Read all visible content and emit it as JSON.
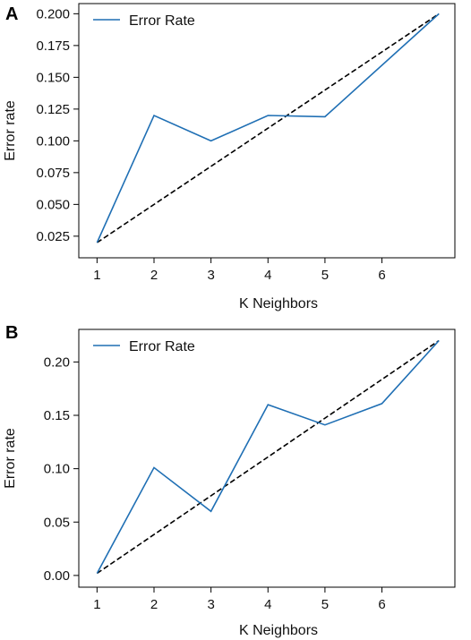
{
  "chart_data": [
    {
      "type": "line",
      "panel_label": "A",
      "xlabel": "K Neighbors",
      "ylabel": "Error rate",
      "legend": {
        "placement": "top-left",
        "entries": [
          "Error Rate"
        ]
      },
      "x_ticks": [
        "1",
        "2",
        "3",
        "4",
        "5",
        "6"
      ],
      "y_ticks": [
        "0.025",
        "0.050",
        "0.075",
        "0.100",
        "0.125",
        "0.150",
        "0.175",
        "0.200"
      ],
      "xlim": [
        0.68,
        7.28
      ],
      "ylim": [
        0.008,
        0.208
      ],
      "grid": false,
      "series": [
        {
          "name": "Error Rate",
          "color": "#1f6fb4",
          "style": "solid",
          "x": [
            1,
            2,
            3,
            4,
            5,
            7
          ],
          "y": [
            0.02,
            0.12,
            0.1,
            0.12,
            0.119,
            0.2
          ]
        },
        {
          "color": "#000000",
          "style": "dashed",
          "x": [
            1,
            7
          ],
          "y": [
            0.02,
            0.2
          ]
        }
      ]
    },
    {
      "type": "line",
      "panel_label": "B",
      "xlabel": "K Neighbors",
      "ylabel": "Error rate",
      "legend": {
        "placement": "top-left",
        "entries": [
          "Error Rate"
        ]
      },
      "x_ticks": [
        "1",
        "2",
        "3",
        "4",
        "5",
        "6"
      ],
      "y_ticks": [
        "0.00",
        "0.05",
        "0.10",
        "0.15",
        "0.20"
      ],
      "xlim": [
        0.68,
        7.28
      ],
      "ylim": [
        -0.011,
        0.2305
      ],
      "grid": false,
      "series": [
        {
          "name": "Error Rate",
          "color": "#1f6fb4",
          "style": "solid",
          "x": [
            1,
            2,
            3,
            4,
            5,
            6,
            7
          ],
          "y": [
            0.002,
            0.101,
            0.06,
            0.16,
            0.141,
            0.161,
            0.22
          ]
        },
        {
          "color": "#000000",
          "style": "dashed",
          "x": [
            1,
            7
          ],
          "y": [
            0.002,
            0.22
          ]
        }
      ]
    }
  ]
}
